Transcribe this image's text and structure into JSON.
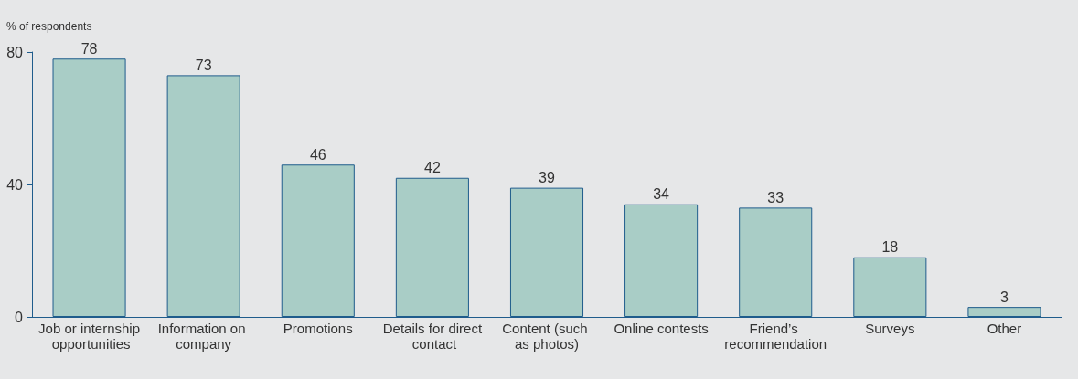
{
  "chart_data": {
    "type": "bar",
    "ylabel": "% of respondents",
    "categories": [
      "Job or internship opportunities",
      "Information on company",
      "Promotions",
      "Details for direct contact",
      "Content (such as photos)",
      "Online contests",
      "Friend’s recommendation",
      "Surveys",
      "Other"
    ],
    "values": [
      78,
      73,
      46,
      42,
      39,
      34,
      33,
      18,
      3
    ],
    "color": "#a9cdc6",
    "ylim": [
      0,
      80
    ],
    "yticks": [
      0,
      40,
      80
    ],
    "data_labels": true
  }
}
